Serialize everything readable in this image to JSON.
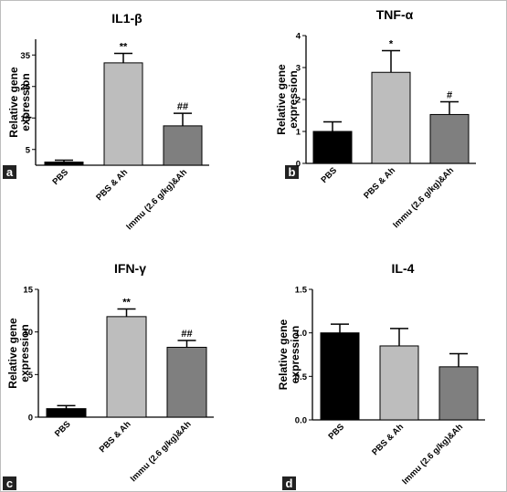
{
  "chart_data": [
    {
      "type": "bar",
      "panel_tag": "a",
      "title": "IL1-β",
      "ylabel": "Relative gene expression",
      "ylabel_lines": [
        "Relative gene",
        "expression"
      ],
      "categories": [
        "PBS",
        "PBS & Ah",
        "Immu (2.6 g/kg)&Ah"
      ],
      "values": [
        1,
        32.5,
        12.5
      ],
      "errors": [
        0.6,
        3.0,
        4.0
      ],
      "annotations": [
        "",
        "**",
        "##"
      ],
      "colors": [
        "#000000",
        "#bdbdbd",
        "#7f7f7f"
      ],
      "ylim": [
        0,
        40
      ],
      "yticks": [
        5,
        15,
        25,
        35
      ],
      "ytick_labels": [
        "5",
        "15",
        "25",
        "35"
      ]
    },
    {
      "type": "bar",
      "panel_tag": "b",
      "title": "TNF-α",
      "ylabel": "Relative gene expression",
      "ylabel_lines": [
        "Relative gene",
        "expression"
      ],
      "categories": [
        "PBS",
        "PBS & Ah",
        "Immu (2.6 g/kg)&Ah"
      ],
      "values": [
        1.0,
        2.85,
        1.53
      ],
      "errors": [
        0.3,
        0.68,
        0.4
      ],
      "annotations": [
        "",
        "*",
        "#"
      ],
      "colors": [
        "#000000",
        "#bdbdbd",
        "#7f7f7f"
      ],
      "ylim": [
        0,
        4
      ],
      "yticks": [
        0,
        1,
        2,
        3,
        4
      ],
      "ytick_labels": [
        "0",
        "1",
        "2",
        "3",
        "4"
      ]
    },
    {
      "type": "bar",
      "panel_tag": "c",
      "title": "IFN-γ",
      "ylabel": "Relative gene expression",
      "ylabel_lines": [
        "Relative gene",
        "expression"
      ],
      "categories": [
        "PBS",
        "PBS & Ah",
        "Immu (2.6 g/kg)&Ah"
      ],
      "values": [
        1.0,
        11.8,
        8.2
      ],
      "errors": [
        0.35,
        0.9,
        0.8
      ],
      "annotations": [
        "",
        "**",
        "##"
      ],
      "colors": [
        "#000000",
        "#bdbdbd",
        "#7f7f7f"
      ],
      "ylim": [
        0,
        15
      ],
      "yticks": [
        0,
        5,
        10,
        15
      ],
      "ytick_labels": [
        "0",
        "5",
        "10",
        "15"
      ]
    },
    {
      "type": "bar",
      "panel_tag": "d",
      "title": "IL-4",
      "ylabel": "Relative gene expression",
      "ylabel_lines": [
        "Relative gene",
        "expression"
      ],
      "categories": [
        "PBS",
        "PBS & Ah",
        "Immu (2.6 g/kg)&Ah"
      ],
      "values": [
        1.0,
        0.85,
        0.61
      ],
      "errors": [
        0.1,
        0.2,
        0.15
      ],
      "annotations": [
        "",
        "",
        ""
      ],
      "colors": [
        "#000000",
        "#bdbdbd",
        "#7f7f7f"
      ],
      "ylim": [
        0,
        1.5
      ],
      "yticks": [
        0,
        0.5,
        1.0,
        1.5
      ],
      "ytick_labels": [
        "0.0",
        "0.5",
        "1.0",
        "1.5"
      ]
    }
  ]
}
